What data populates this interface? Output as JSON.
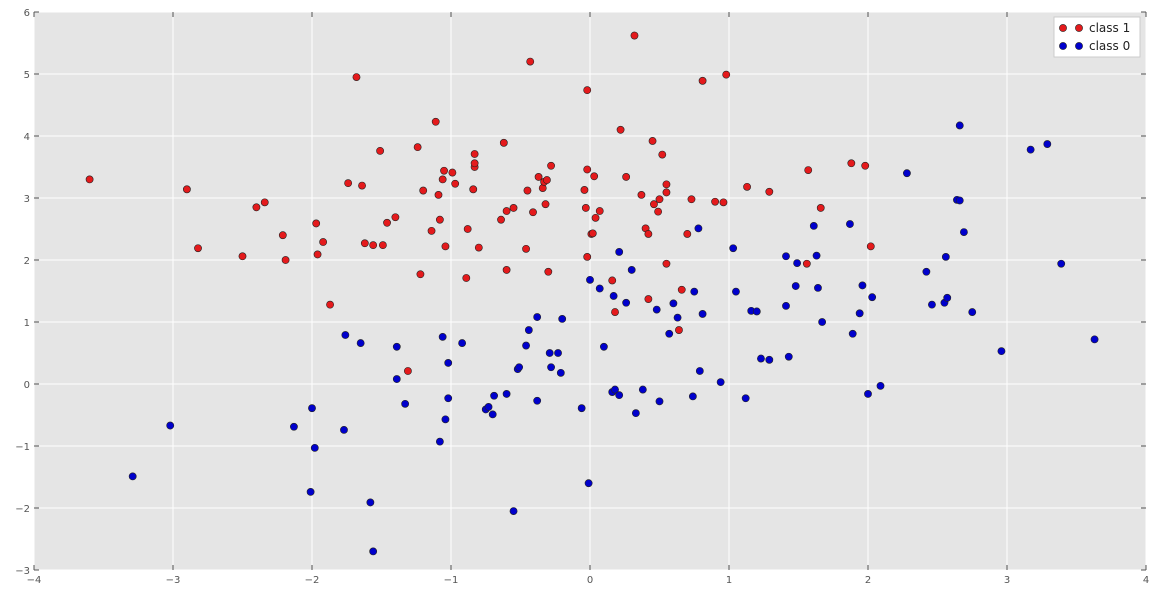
{
  "chart_data": {
    "type": "scatter",
    "title": "",
    "xlabel": "",
    "ylabel": "",
    "xlim": [
      -4,
      4
    ],
    "ylim": [
      -3,
      6
    ],
    "xticks": [
      -4,
      -3,
      -2,
      -1,
      0,
      1,
      2,
      3,
      4
    ],
    "yticks": [
      -3,
      -2,
      -1,
      0,
      1,
      2,
      3,
      4,
      5,
      6
    ],
    "xtick_labels": [
      "−4",
      "−3",
      "−2",
      "−1",
      "0",
      "1",
      "2",
      "3",
      "4"
    ],
    "ytick_labels": [
      "−3",
      "−2",
      "−1",
      "0",
      "1",
      "2",
      "3",
      "4",
      "5",
      "6"
    ],
    "grid": true,
    "legend_position": "top-right",
    "background_color": "#e5e5e5",
    "series": [
      {
        "name": "class 1",
        "color": "#e41a1c",
        "points": [
          [
            -3.6,
            3.3
          ],
          [
            -2.9,
            3.14
          ],
          [
            -2.82,
            2.19
          ],
          [
            -2.5,
            2.06
          ],
          [
            -2.4,
            2.85
          ],
          [
            -2.34,
            2.93
          ],
          [
            -2.21,
            2.4
          ],
          [
            -2.19,
            2.0
          ],
          [
            -1.97,
            2.59
          ],
          [
            -1.96,
            2.09
          ],
          [
            -1.92,
            2.29
          ],
          [
            -1.87,
            1.28
          ],
          [
            -1.74,
            3.24
          ],
          [
            -1.68,
            4.95
          ],
          [
            -1.64,
            3.2
          ],
          [
            -1.62,
            2.27
          ],
          [
            -1.56,
            2.24
          ],
          [
            -1.51,
            3.76
          ],
          [
            -1.49,
            2.24
          ],
          [
            -1.46,
            2.6
          ],
          [
            -1.4,
            2.69
          ],
          [
            -1.31,
            0.21
          ],
          [
            -1.24,
            3.82
          ],
          [
            -1.22,
            1.77
          ],
          [
            -1.2,
            3.12
          ],
          [
            -1.14,
            2.47
          ],
          [
            -1.11,
            4.23
          ],
          [
            -1.09,
            3.05
          ],
          [
            -1.08,
            2.65
          ],
          [
            -1.06,
            3.3
          ],
          [
            -1.05,
            3.44
          ],
          [
            -1.04,
            2.22
          ],
          [
            -0.99,
            3.41
          ],
          [
            -0.97,
            3.23
          ],
          [
            -0.89,
            1.71
          ],
          [
            -0.88,
            2.5
          ],
          [
            -0.84,
            3.14
          ],
          [
            -0.83,
            3.5
          ],
          [
            -0.83,
            3.56
          ],
          [
            -0.83,
            3.71
          ],
          [
            -0.8,
            2.2
          ],
          [
            -0.64,
            2.65
          ],
          [
            -0.62,
            3.89
          ],
          [
            -0.6,
            1.84
          ],
          [
            -0.6,
            2.79
          ],
          [
            -0.55,
            2.84
          ],
          [
            -0.46,
            2.18
          ],
          [
            -0.45,
            3.12
          ],
          [
            -0.43,
            5.2
          ],
          [
            -0.41,
            2.77
          ],
          [
            -0.37,
            3.34
          ],
          [
            -0.34,
            3.16
          ],
          [
            -0.33,
            3.26
          ],
          [
            -0.32,
            2.9
          ],
          [
            -0.31,
            3.29
          ],
          [
            -0.3,
            1.81
          ],
          [
            -0.28,
            3.52
          ],
          [
            -0.04,
            3.13
          ],
          [
            -0.03,
            2.84
          ],
          [
            -0.02,
            4.74
          ],
          [
            -0.02,
            3.46
          ],
          [
            -0.02,
            2.05
          ],
          [
            0.01,
            2.42
          ],
          [
            0.02,
            2.43
          ],
          [
            0.03,
            3.35
          ],
          [
            0.04,
            2.68
          ],
          [
            0.07,
            2.79
          ],
          [
            0.16,
            1.67
          ],
          [
            0.18,
            1.16
          ],
          [
            0.22,
            4.1
          ],
          [
            0.26,
            3.34
          ],
          [
            0.32,
            5.62
          ],
          [
            0.37,
            3.05
          ],
          [
            0.4,
            2.51
          ],
          [
            0.42,
            2.42
          ],
          [
            0.42,
            1.37
          ],
          [
            0.45,
            3.92
          ],
          [
            0.46,
            2.9
          ],
          [
            0.49,
            2.78
          ],
          [
            0.5,
            2.98
          ],
          [
            0.52,
            3.7
          ],
          [
            0.55,
            3.09
          ],
          [
            0.55,
            3.22
          ],
          [
            0.55,
            1.94
          ],
          [
            0.64,
            0.87
          ],
          [
            0.66,
            1.52
          ],
          [
            0.7,
            2.42
          ],
          [
            0.73,
            2.98
          ],
          [
            0.81,
            4.89
          ],
          [
            0.9,
            2.94
          ],
          [
            0.96,
            2.93
          ],
          [
            0.98,
            4.99
          ],
          [
            1.13,
            3.18
          ],
          [
            1.29,
            3.1
          ],
          [
            1.56,
            1.94
          ],
          [
            1.57,
            3.45
          ],
          [
            1.66,
            2.84
          ],
          [
            1.88,
            3.56
          ],
          [
            1.98,
            3.52
          ],
          [
            2.02,
            2.22
          ]
        ]
      },
      {
        "name": "class 0",
        "color": "#0000cc",
        "points": [
          [
            -3.29,
            -1.49
          ],
          [
            -3.02,
            -0.67
          ],
          [
            -2.13,
            -0.69
          ],
          [
            -2.01,
            -1.74
          ],
          [
            -2.0,
            -0.39
          ],
          [
            -1.98,
            -1.03
          ],
          [
            -1.76,
            0.79
          ],
          [
            -1.77,
            -0.74
          ],
          [
            -1.65,
            0.66
          ],
          [
            -1.58,
            -1.91
          ],
          [
            -1.56,
            -2.7
          ],
          [
            -1.39,
            0.08
          ],
          [
            -1.39,
            0.6
          ],
          [
            -1.33,
            -0.32
          ],
          [
            -1.08,
            -0.93
          ],
          [
            -1.06,
            0.76
          ],
          [
            -1.04,
            -0.57
          ],
          [
            -1.02,
            0.34
          ],
          [
            -1.02,
            -0.23
          ],
          [
            -0.92,
            0.66
          ],
          [
            -0.75,
            -0.41
          ],
          [
            -0.73,
            -0.37
          ],
          [
            -0.7,
            -0.49
          ],
          [
            -0.69,
            -0.19
          ],
          [
            -0.6,
            -0.16
          ],
          [
            -0.55,
            -2.05
          ],
          [
            -0.52,
            0.24
          ],
          [
            -0.51,
            0.27
          ],
          [
            -0.46,
            0.62
          ],
          [
            -0.44,
            0.87
          ],
          [
            -0.38,
            -0.27
          ],
          [
            -0.38,
            1.08
          ],
          [
            -0.29,
            0.5
          ],
          [
            -0.28,
            0.27
          ],
          [
            -0.23,
            0.5
          ],
          [
            -0.21,
            0.18
          ],
          [
            -0.2,
            1.05
          ],
          [
            -0.06,
            -0.39
          ],
          [
            -0.01,
            -1.6
          ],
          [
            0.0,
            1.68
          ],
          [
            0.07,
            1.54
          ],
          [
            0.1,
            0.6
          ],
          [
            0.16,
            -0.13
          ],
          [
            0.17,
            1.42
          ],
          [
            0.18,
            -0.09
          ],
          [
            0.21,
            -0.18
          ],
          [
            0.21,
            2.13
          ],
          [
            0.26,
            1.31
          ],
          [
            0.3,
            1.84
          ],
          [
            0.33,
            -0.47
          ],
          [
            0.38,
            -0.09
          ],
          [
            0.48,
            1.2
          ],
          [
            0.5,
            -0.28
          ],
          [
            0.57,
            0.81
          ],
          [
            0.6,
            1.3
          ],
          [
            0.63,
            1.07
          ],
          [
            0.74,
            -0.2
          ],
          [
            0.75,
            1.49
          ],
          [
            0.78,
            2.51
          ],
          [
            0.79,
            0.21
          ],
          [
            0.81,
            1.13
          ],
          [
            0.94,
            0.03
          ],
          [
            1.03,
            2.19
          ],
          [
            1.05,
            1.49
          ],
          [
            1.12,
            -0.23
          ],
          [
            1.16,
            1.18
          ],
          [
            1.2,
            1.17
          ],
          [
            1.23,
            0.41
          ],
          [
            1.29,
            0.39
          ],
          [
            1.41,
            2.06
          ],
          [
            1.41,
            1.26
          ],
          [
            1.43,
            0.44
          ],
          [
            1.48,
            1.58
          ],
          [
            1.49,
            1.95
          ],
          [
            1.61,
            2.55
          ],
          [
            1.63,
            2.07
          ],
          [
            1.64,
            1.55
          ],
          [
            1.67,
            1.0
          ],
          [
            1.87,
            2.58
          ],
          [
            1.89,
            0.81
          ],
          [
            1.94,
            1.14
          ],
          [
            1.96,
            1.59
          ],
          [
            2.0,
            -0.16
          ],
          [
            2.03,
            1.4
          ],
          [
            2.09,
            -0.03
          ],
          [
            2.28,
            3.4
          ],
          [
            2.42,
            1.81
          ],
          [
            2.46,
            1.28
          ],
          [
            2.55,
            1.31
          ],
          [
            2.56,
            2.05
          ],
          [
            2.57,
            1.39
          ],
          [
            2.64,
            2.97
          ],
          [
            2.66,
            2.96
          ],
          [
            2.66,
            4.17
          ],
          [
            2.69,
            2.45
          ],
          [
            2.75,
            1.16
          ],
          [
            2.96,
            0.53
          ],
          [
            3.17,
            3.78
          ],
          [
            3.29,
            3.87
          ],
          [
            3.39,
            1.94
          ],
          [
            3.63,
            0.72
          ]
        ]
      }
    ]
  }
}
